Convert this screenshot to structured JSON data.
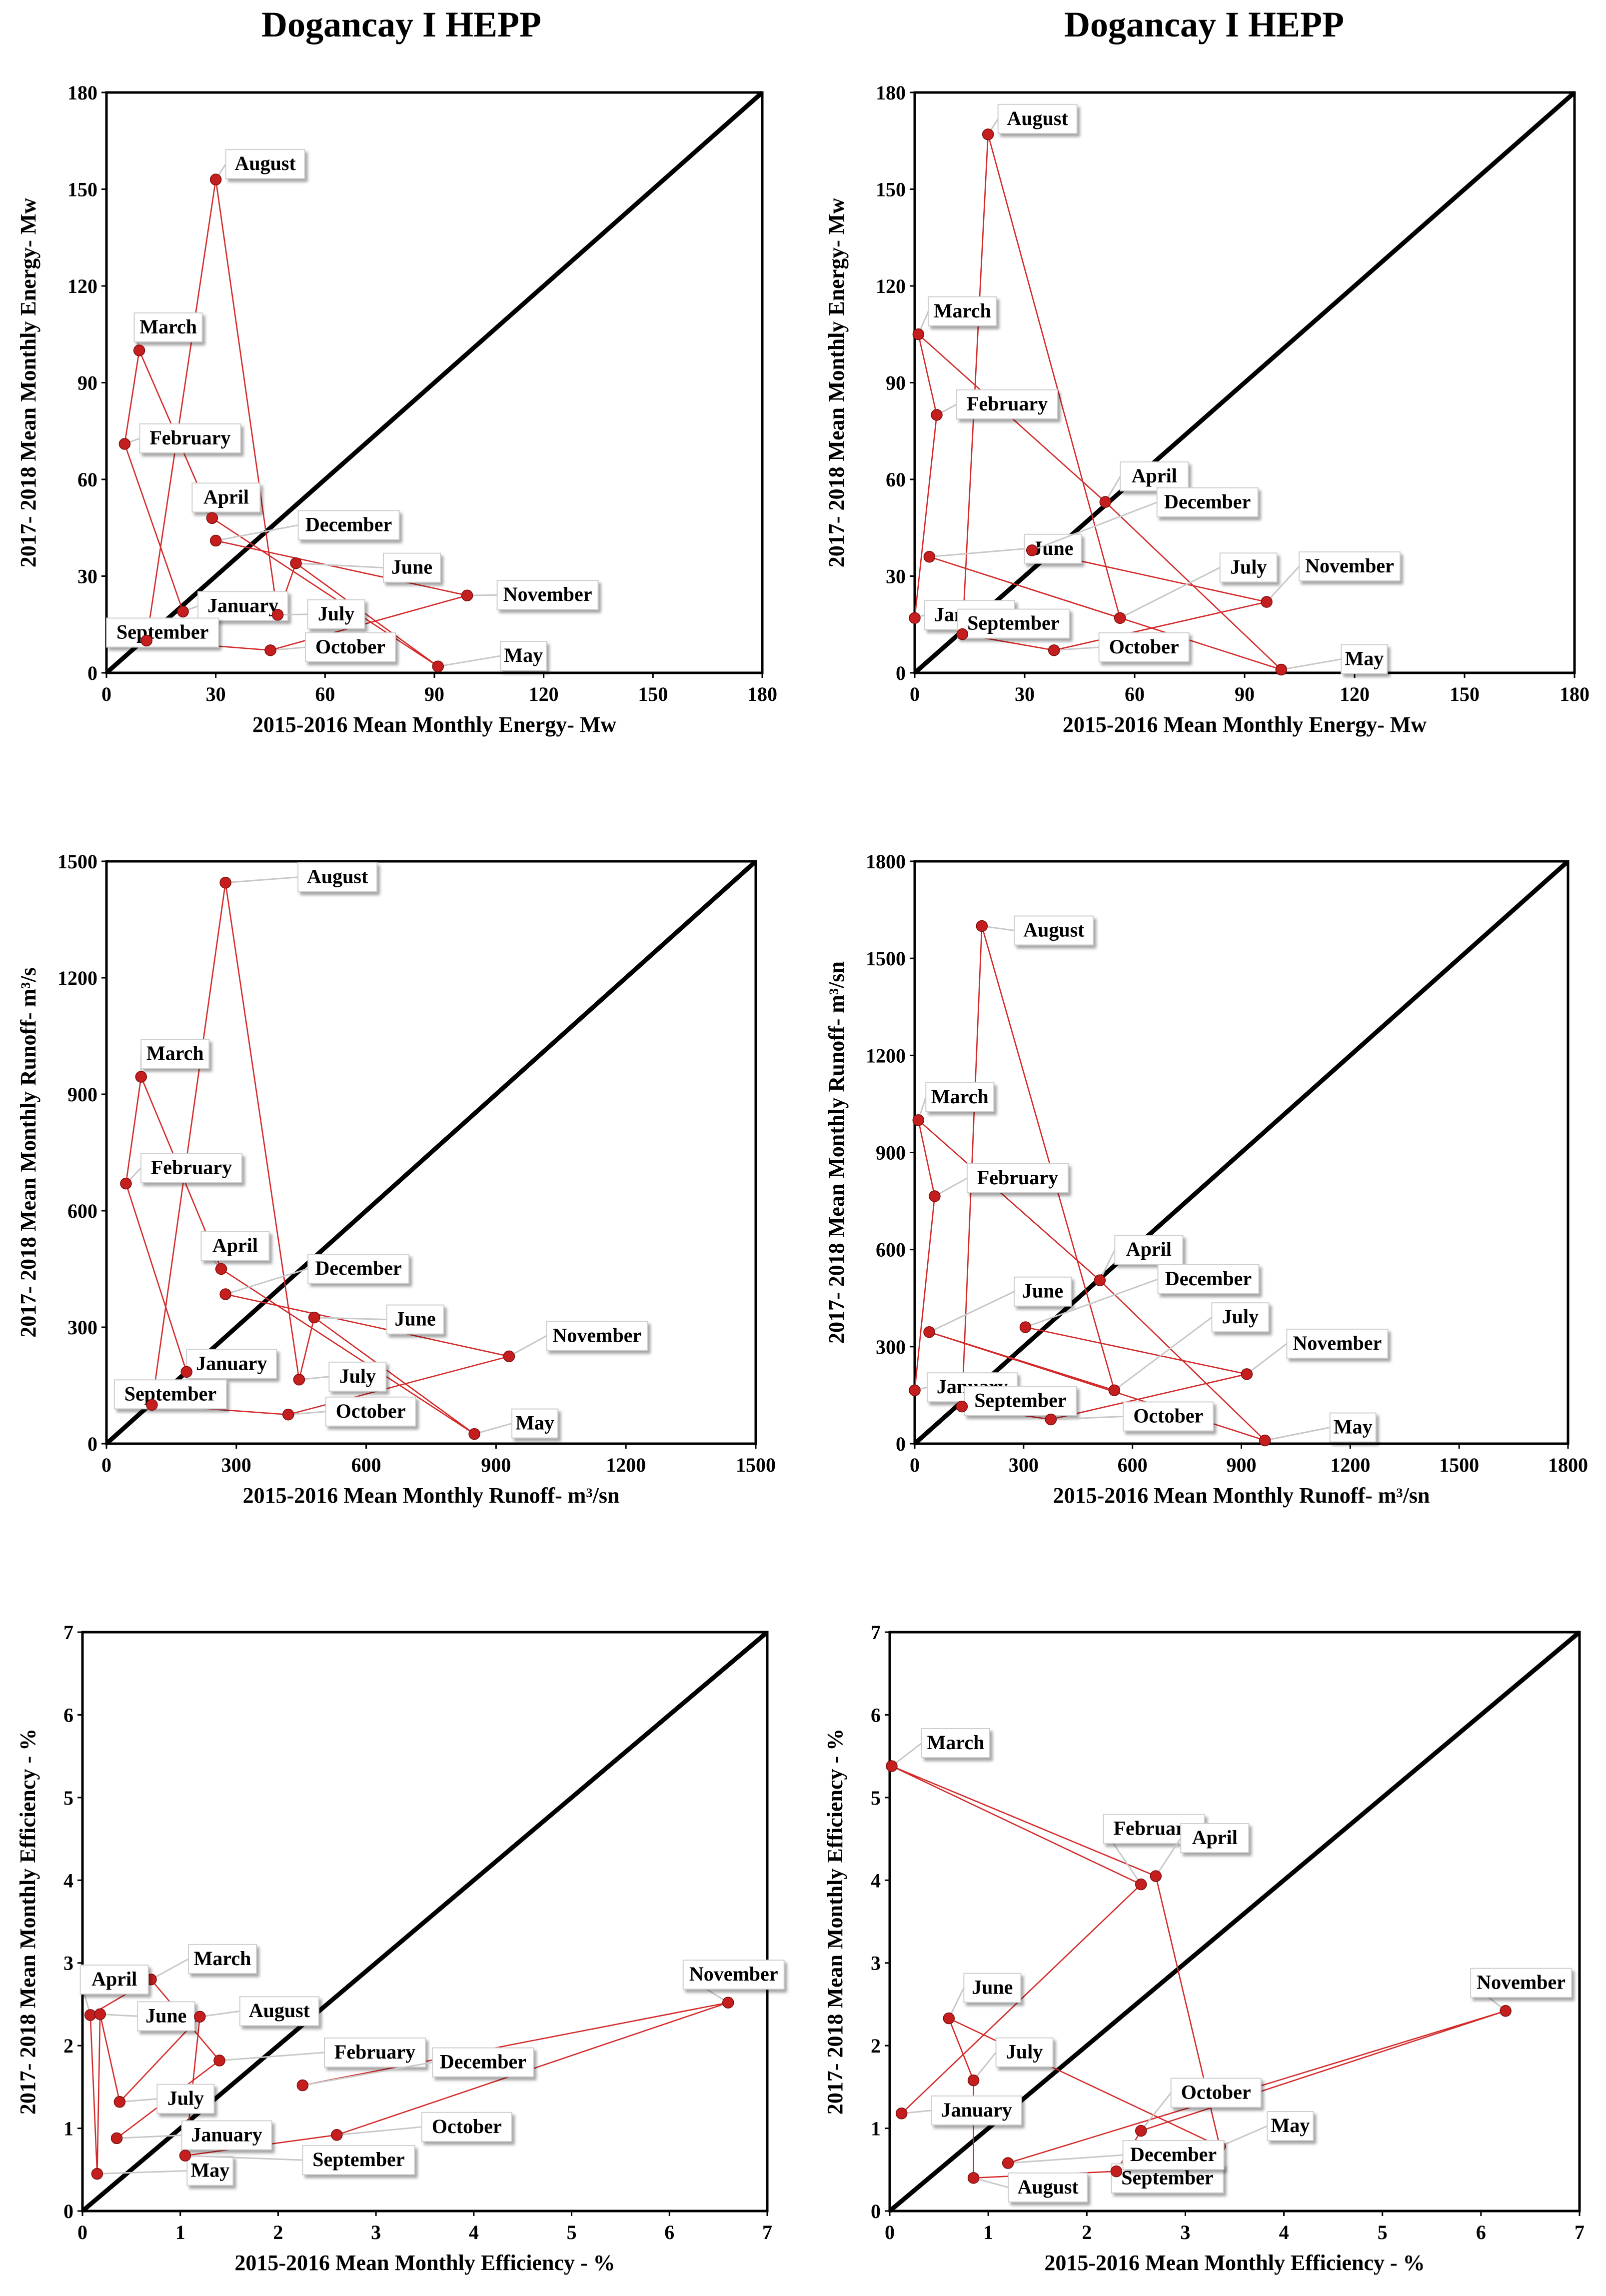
{
  "titles": {
    "left": "Dogancay I HEPP",
    "right": "Dogancay I HEPP"
  },
  "chart_data": [
    {
      "type": "scatter",
      "id": "energy-left",
      "title": "Dogancay I HEPP",
      "xlabel": "2015-2016 Mean Monthly Energy- Mw",
      "ylabel": "2017- 2018 Mean Monthly Energy- Mw",
      "xlim": [
        0,
        180
      ],
      "ylim": [
        0,
        180
      ],
      "xticks": [
        "0",
        "30",
        "60",
        "90",
        "120",
        "150",
        "180"
      ],
      "yticks": [
        "0",
        "30",
        "60",
        "90",
        "120",
        "150",
        "180"
      ],
      "reference_line": "1:1",
      "points": [
        {
          "label": "January",
          "x": 21,
          "y": 19
        },
        {
          "label": "February",
          "x": 5,
          "y": 71
        },
        {
          "label": "March",
          "x": 9,
          "y": 100
        },
        {
          "label": "April",
          "x": 29,
          "y": 48
        },
        {
          "label": "May",
          "x": 91,
          "y": 2
        },
        {
          "label": "June",
          "x": 52,
          "y": 34
        },
        {
          "label": "July",
          "x": 47,
          "y": 18
        },
        {
          "label": "August",
          "x": 30,
          "y": 153
        },
        {
          "label": "September",
          "x": 11,
          "y": 10
        },
        {
          "label": "October",
          "x": 45,
          "y": 7
        },
        {
          "label": "November",
          "x": 99,
          "y": 24
        },
        {
          "label": "December",
          "x": 30,
          "y": 41
        }
      ]
    },
    {
      "type": "scatter",
      "id": "energy-right",
      "title": "Dogancay I HEPP",
      "xlabel": "2015-2016 Mean Monthly Energy- Mw",
      "ylabel": "2017- 2018 Mean Monthly Energy- Mw",
      "xlim": [
        0,
        180
      ],
      "ylim": [
        0,
        180
      ],
      "xticks": [
        "0",
        "30",
        "60",
        "90",
        "120",
        "150",
        "180"
      ],
      "yticks": [
        "0",
        "30",
        "60",
        "90",
        "120",
        "150",
        "180"
      ],
      "reference_line": "1:1",
      "points": [
        {
          "label": "January",
          "x": 0,
          "y": 17
        },
        {
          "label": "February",
          "x": 6,
          "y": 80
        },
        {
          "label": "March",
          "x": 1,
          "y": 105
        },
        {
          "label": "April",
          "x": 52,
          "y": 53
        },
        {
          "label": "May",
          "x": 100,
          "y": 1
        },
        {
          "label": "June",
          "x": 4,
          "y": 36
        },
        {
          "label": "July",
          "x": 56,
          "y": 17
        },
        {
          "label": "August",
          "x": 20,
          "y": 167
        },
        {
          "label": "September",
          "x": 13,
          "y": 12
        },
        {
          "label": "October",
          "x": 38,
          "y": 7
        },
        {
          "label": "November",
          "x": 96,
          "y": 22
        },
        {
          "label": "December",
          "x": 32,
          "y": 38
        }
      ]
    },
    {
      "type": "scatter",
      "id": "runoff-left",
      "xlabel": "2015-2016 Mean Monthly Runoff- m³/sn",
      "ylabel": "2017- 2018 Mean Monthly Runoff- m³/s",
      "xlim": [
        0,
        1500
      ],
      "ylim": [
        0,
        1500
      ],
      "xticks": [
        "0",
        "300",
        "600",
        "900",
        "1200",
        "1500"
      ],
      "yticks": [
        "0",
        "300",
        "600",
        "900",
        "1200",
        "1500"
      ],
      "reference_line": "1:1",
      "points": [
        {
          "label": "January",
          "x": 185,
          "y": 185
        },
        {
          "label": "February",
          "x": 45,
          "y": 670
        },
        {
          "label": "March",
          "x": 80,
          "y": 945
        },
        {
          "label": "April",
          "x": 265,
          "y": 450
        },
        {
          "label": "May",
          "x": 850,
          "y": 25
        },
        {
          "label": "June",
          "x": 480,
          "y": 325
        },
        {
          "label": "July",
          "x": 445,
          "y": 165
        },
        {
          "label": "August",
          "x": 275,
          "y": 1445
        },
        {
          "label": "September",
          "x": 105,
          "y": 100
        },
        {
          "label": "October",
          "x": 420,
          "y": 75
        },
        {
          "label": "November",
          "x": 930,
          "y": 225
        },
        {
          "label": "December",
          "x": 275,
          "y": 385
        }
      ]
    },
    {
      "type": "scatter",
      "id": "runoff-right",
      "xlabel": "2015-2016 Mean Monthly Runoff- m³/sn",
      "ylabel": "2017- 2018 Mean Monthly Runoff- m³/sn",
      "xlim": [
        0,
        1800
      ],
      "ylim": [
        0,
        1800
      ],
      "xticks": [
        "0",
        "300",
        "600",
        "900",
        "1200",
        "1500",
        "1800"
      ],
      "yticks": [
        "0",
        "300",
        "600",
        "900",
        "1200",
        "1500",
        "1800"
      ],
      "reference_line": "1:1",
      "points": [
        {
          "label": "January",
          "x": 0,
          "y": 165
        },
        {
          "label": "February",
          "x": 55,
          "y": 765
        },
        {
          "label": "March",
          "x": 10,
          "y": 1000
        },
        {
          "label": "April",
          "x": 510,
          "y": 505
        },
        {
          "label": "May",
          "x": 965,
          "y": 10
        },
        {
          "label": "June",
          "x": 40,
          "y": 345
        },
        {
          "label": "July",
          "x": 550,
          "y": 165
        },
        {
          "label": "August",
          "x": 185,
          "y": 1600
        },
        {
          "label": "September",
          "x": 130,
          "y": 115
        },
        {
          "label": "October",
          "x": 375,
          "y": 75
        },
        {
          "label": "November",
          "x": 915,
          "y": 215
        },
        {
          "label": "December",
          "x": 305,
          "y": 360
        }
      ]
    },
    {
      "type": "scatter",
      "id": "efficiency-left",
      "xlabel": "2015-2016 Mean Monthly Efficiency - %",
      "ylabel": "2017- 2018 Mean Monthly Efficiency - %",
      "xlim": [
        0,
        7
      ],
      "ylim": [
        0,
        7
      ],
      "xticks": [
        "0",
        "1",
        "2",
        "3",
        "4",
        "5",
        "6",
        "7"
      ],
      "yticks": [
        "0",
        "1",
        "2",
        "3",
        "4",
        "5",
        "6",
        "7"
      ],
      "reference_line": "1:1",
      "points": [
        {
          "label": "January",
          "x": 0.35,
          "y": 0.88
        },
        {
          "label": "February",
          "x": 1.4,
          "y": 1.82
        },
        {
          "label": "March",
          "x": 0.7,
          "y": 2.8
        },
        {
          "label": "April",
          "x": 0.08,
          "y": 2.37
        },
        {
          "label": "May",
          "x": 0.15,
          "y": 0.45
        },
        {
          "label": "June",
          "x": 0.18,
          "y": 2.38
        },
        {
          "label": "July",
          "x": 0.38,
          "y": 1.32
        },
        {
          "label": "August",
          "x": 1.2,
          "y": 2.35
        },
        {
          "label": "September",
          "x": 1.05,
          "y": 0.67
        },
        {
          "label": "October",
          "x": 2.6,
          "y": 0.92
        },
        {
          "label": "November",
          "x": 6.6,
          "y": 2.52
        },
        {
          "label": "December",
          "x": 2.25,
          "y": 1.52
        }
      ]
    },
    {
      "type": "scatter",
      "id": "efficiency-right",
      "xlabel": "2015-2016 Mean Monthly Efficiency - %",
      "ylabel": "2017- 2018 Mean Monthly Efficiency - %",
      "xlim": [
        0,
        7
      ],
      "ylim": [
        0,
        7
      ],
      "xticks": [
        "0",
        "1",
        "2",
        "3",
        "4",
        "5",
        "6",
        "7"
      ],
      "yticks": [
        "0",
        "1",
        "2",
        "3",
        "4",
        "5",
        "6",
        "7"
      ],
      "reference_line": "1:1",
      "points": [
        {
          "label": "January",
          "x": 0.12,
          "y": 1.18
        },
        {
          "label": "February",
          "x": 2.55,
          "y": 3.95
        },
        {
          "label": "March",
          "x": 0.02,
          "y": 5.38
        },
        {
          "label": "April",
          "x": 2.7,
          "y": 4.05
        },
        {
          "label": "May",
          "x": 3.35,
          "y": 0.78
        },
        {
          "label": "June",
          "x": 0.6,
          "y": 2.33
        },
        {
          "label": "July",
          "x": 0.85,
          "y": 1.58
        },
        {
          "label": "August",
          "x": 0.85,
          "y": 0.4
        },
        {
          "label": "September",
          "x": 2.3,
          "y": 0.48
        },
        {
          "label": "October",
          "x": 2.55,
          "y": 0.97
        },
        {
          "label": "November",
          "x": 6.25,
          "y": 2.42
        },
        {
          "label": "December",
          "x": 1.2,
          "y": 0.58
        }
      ]
    }
  ]
}
